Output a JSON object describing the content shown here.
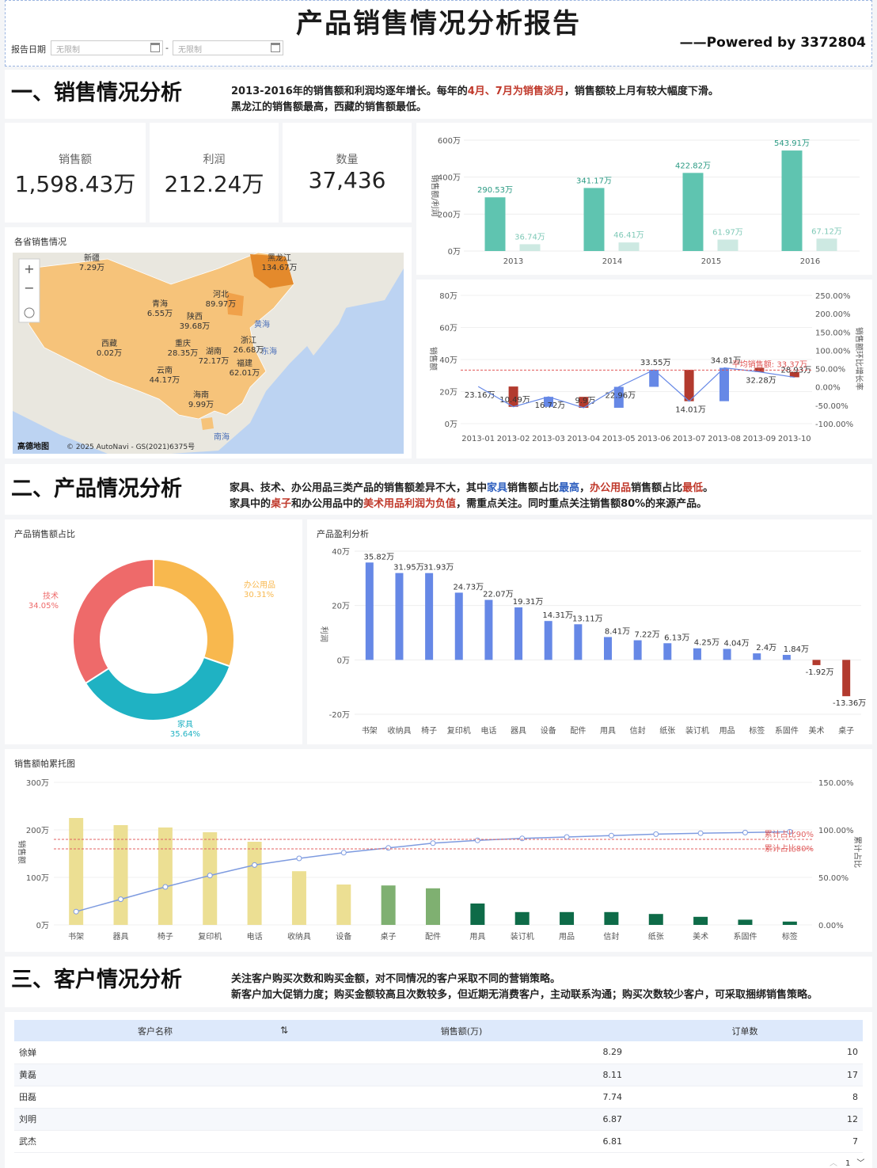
{
  "header": {
    "title": "产品销售情况分析报告",
    "powered": "——Powered by 3372804",
    "date_label": "报告日期",
    "date_from_placeholder": "无限制",
    "date_sep": "-",
    "date_to_placeholder": "无限制"
  },
  "section1": {
    "title": "一、销售情况分析",
    "desc1_a": "2013-2016年的销售额和利润均逐年增长。每年的",
    "desc1_b": "4月、7月为销售淡月",
    "desc1_c": "，销售额较上月有较大幅度下滑。",
    "desc2": "黑龙江的销售额最高，西藏的销售额最低。"
  },
  "kpis": [
    {
      "label": "销售额",
      "value": "1,598.43万"
    },
    {
      "label": "利润",
      "value": "212.24万"
    },
    {
      "label": "数量",
      "value": "37,436"
    }
  ],
  "map": {
    "title": "各省销售情况",
    "attribution": "高德地图",
    "copyright": "© 2025 AutoNavi - GS(2021)6375号",
    "sea1": "黄海",
    "sea2": "东海",
    "sea3": "南海",
    "provinces": [
      {
        "name": "新疆",
        "value": "7.29万"
      },
      {
        "name": "黑龙江",
        "value": "134.67万"
      },
      {
        "name": "河北",
        "value": "89.97万"
      },
      {
        "name": "青海",
        "value": "6.55万"
      },
      {
        "name": "陕西",
        "value": "39.68万"
      },
      {
        "name": "西藏",
        "value": "0.02万"
      },
      {
        "name": "重庆",
        "value": "28.35万"
      },
      {
        "name": "湖南",
        "value": "72.17万"
      },
      {
        "name": "浙江",
        "value": "26.68万"
      },
      {
        "name": "福建",
        "value": "62.01万"
      },
      {
        "name": "云南",
        "value": "44.17万"
      },
      {
        "name": "海南",
        "value": "9.99万"
      }
    ]
  },
  "section2": {
    "title": "二、产品情况分析",
    "d1a": "家具、技术、办公用品三类产品的销售额差异不大，其中",
    "d1b": "家具",
    "d1c": "销售额占比",
    "d1d": "最高",
    "d1e": "，",
    "d1f": "办公用品",
    "d1g": "销售额占比",
    "d1h": "最低",
    "d1i": "。",
    "d2a": "家具中的",
    "d2b": "桌子",
    "d2c": "和办公用品中的",
    "d2d": "美术用品利润为负值",
    "d2e": "，需重点关注。同时重点关注销售额80%的来源产品。"
  },
  "section3": {
    "title": "三、客户情况分析",
    "desc1": "关注客户购买次数和购买金额，对不同情况的客户采取不同的营销策略。",
    "desc2": "新客户加大促销力度；购买金额较高且次数较多，但近期无消费客户，主动联系沟通；购买次数较少客户，可采取捆绑销售策略。"
  },
  "table": {
    "headers": [
      "客户名称",
      "销售额(万)",
      "订单数"
    ],
    "sort_icon": "sort-icon",
    "rows": [
      [
        "徐婵",
        "8.29",
        "10"
      ],
      [
        "黄磊",
        "8.11",
        "17"
      ],
      [
        "田磊",
        "7.74",
        "8"
      ],
      [
        "刘明",
        "6.87",
        "12"
      ],
      [
        "武杰",
        "6.81",
        "7"
      ]
    ],
    "page": "1"
  },
  "colors": {
    "teal": "#5fc4b0",
    "teal_light": "#cde9e2",
    "blue": "#6688e6",
    "red": "#b23a2e",
    "orange": "#f8b84e",
    "pink": "#ee6a6a",
    "cyan": "#1fb2c3",
    "yellow": "#ecdf93",
    "green": "#7fb071",
    "dkgreen": "#0e6b48"
  },
  "chart_data": [
    {
      "type": "bar",
      "title": "",
      "ylabel": "销售额/利润",
      "ylim": [
        0,
        600
      ],
      "yticks": [
        "0万",
        "200万",
        "400万",
        "600万"
      ],
      "categories": [
        "2013",
        "2014",
        "2015",
        "2016"
      ],
      "series": [
        {
          "name": "销售额",
          "values": [
            290.53,
            341.17,
            422.82,
            543.91
          ],
          "labels": [
            "290.53万",
            "341.17万",
            "422.82万",
            "543.91万"
          ]
        },
        {
          "name": "利润",
          "values": [
            36.74,
            46.41,
            61.97,
            67.12
          ],
          "labels": [
            "36.74万",
            "46.41万",
            "61.97万",
            "67.12万"
          ]
        }
      ]
    },
    {
      "type": "bar",
      "subtype": "waterfall+line",
      "ylabel": "销售额",
      "y2label": "销售额环比增长率",
      "ylim": [
        0,
        80
      ],
      "yticks": [
        "0万",
        "20万",
        "40万",
        "60万",
        "80万"
      ],
      "y2ticks": [
        "-100.00%",
        "-50.00%",
        "0.00%",
        "50.00%",
        "100.00%",
        "150.00%",
        "200.00%",
        "250.00%"
      ],
      "categories": [
        "2013-01",
        "2013-02",
        "2013-03",
        "2013-04",
        "2013-05",
        "2013-06",
        "2013-07",
        "2013-08",
        "2013-09",
        "2013-10"
      ],
      "values": [
        23.16,
        10.49,
        16.72,
        9.9,
        22.96,
        33.55,
        14.01,
        34.81,
        32.28,
        28.93
      ],
      "labels": [
        "23.16万",
        "10.49万",
        "16.72万",
        "9.9万",
        "22.96万",
        "33.55万",
        "14.01万",
        "34.81万",
        "32.28万",
        "28.93万"
      ],
      "avg_line": {
        "label": "平均销售额: 33.37万",
        "value": 33.37
      }
    },
    {
      "type": "pie",
      "title": "产品销售额占比",
      "slices": [
        {
          "name": "技术",
          "pct": "34.05%",
          "value": 34.05
        },
        {
          "name": "办公用品",
          "pct": "30.31%",
          "value": 30.31
        },
        {
          "name": "家具",
          "pct": "35.64%",
          "value": 35.64
        }
      ]
    },
    {
      "type": "bar",
      "title": "产品盈利分析",
      "ylabel": "利润",
      "ylim": [
        -20,
        40
      ],
      "yticks": [
        "-20万",
        "0万",
        "20万",
        "40万"
      ],
      "categories": [
        "书架",
        "收纳具",
        "椅子",
        "复印机",
        "电话",
        "器具",
        "设备",
        "配件",
        "用具",
        "信封",
        "纸张",
        "装订机",
        "用品",
        "标签",
        "系固件",
        "美术",
        "桌子"
      ],
      "values": [
        35.82,
        31.95,
        31.93,
        24.73,
        22.07,
        19.31,
        14.31,
        13.11,
        8.41,
        7.22,
        6.13,
        4.25,
        4.04,
        2.4,
        1.84,
        -1.92,
        -13.36
      ],
      "labels": [
        "35.82万",
        "31.95万",
        "31.93万",
        "24.73万",
        "22.07万",
        "19.31万",
        "14.31万",
        "13.11万",
        "8.41万",
        "7.22万",
        "6.13万",
        "4.25万",
        "4.04万",
        "2.4万",
        "1.84万",
        "-1.92万",
        "-13.36万"
      ]
    },
    {
      "type": "bar",
      "subtype": "pareto",
      "title": "销售额帕累托图",
      "ylabel": "销售额",
      "y2label": "累计占比",
      "ylim": [
        0,
        300
      ],
      "yticks": [
        "0万",
        "100万",
        "200万",
        "300万"
      ],
      "y2ticks": [
        "0.00%",
        "50.00%",
        "100.00%",
        "150.00%"
      ],
      "categories": [
        "书架",
        "器具",
        "椅子",
        "复印机",
        "电话",
        "收纳具",
        "设备",
        "桌子",
        "配件",
        "用具",
        "装订机",
        "用品",
        "信封",
        "纸张",
        "美术",
        "系固件",
        "标签"
      ],
      "values": [
        225,
        210,
        205,
        195,
        175,
        113,
        85,
        83,
        77,
        45,
        27,
        27,
        27,
        23,
        17,
        11,
        7
      ],
      "cumulative": [
        14,
        27,
        40,
        52,
        63,
        70,
        76,
        81,
        86,
        89,
        91,
        92.5,
        94,
        95.5,
        96.5,
        97.2,
        98
      ],
      "ref_lines": [
        {
          "label": "累计占比90%",
          "value": 90
        },
        {
          "label": "累计占比80%",
          "value": 80
        }
      ]
    }
  ]
}
